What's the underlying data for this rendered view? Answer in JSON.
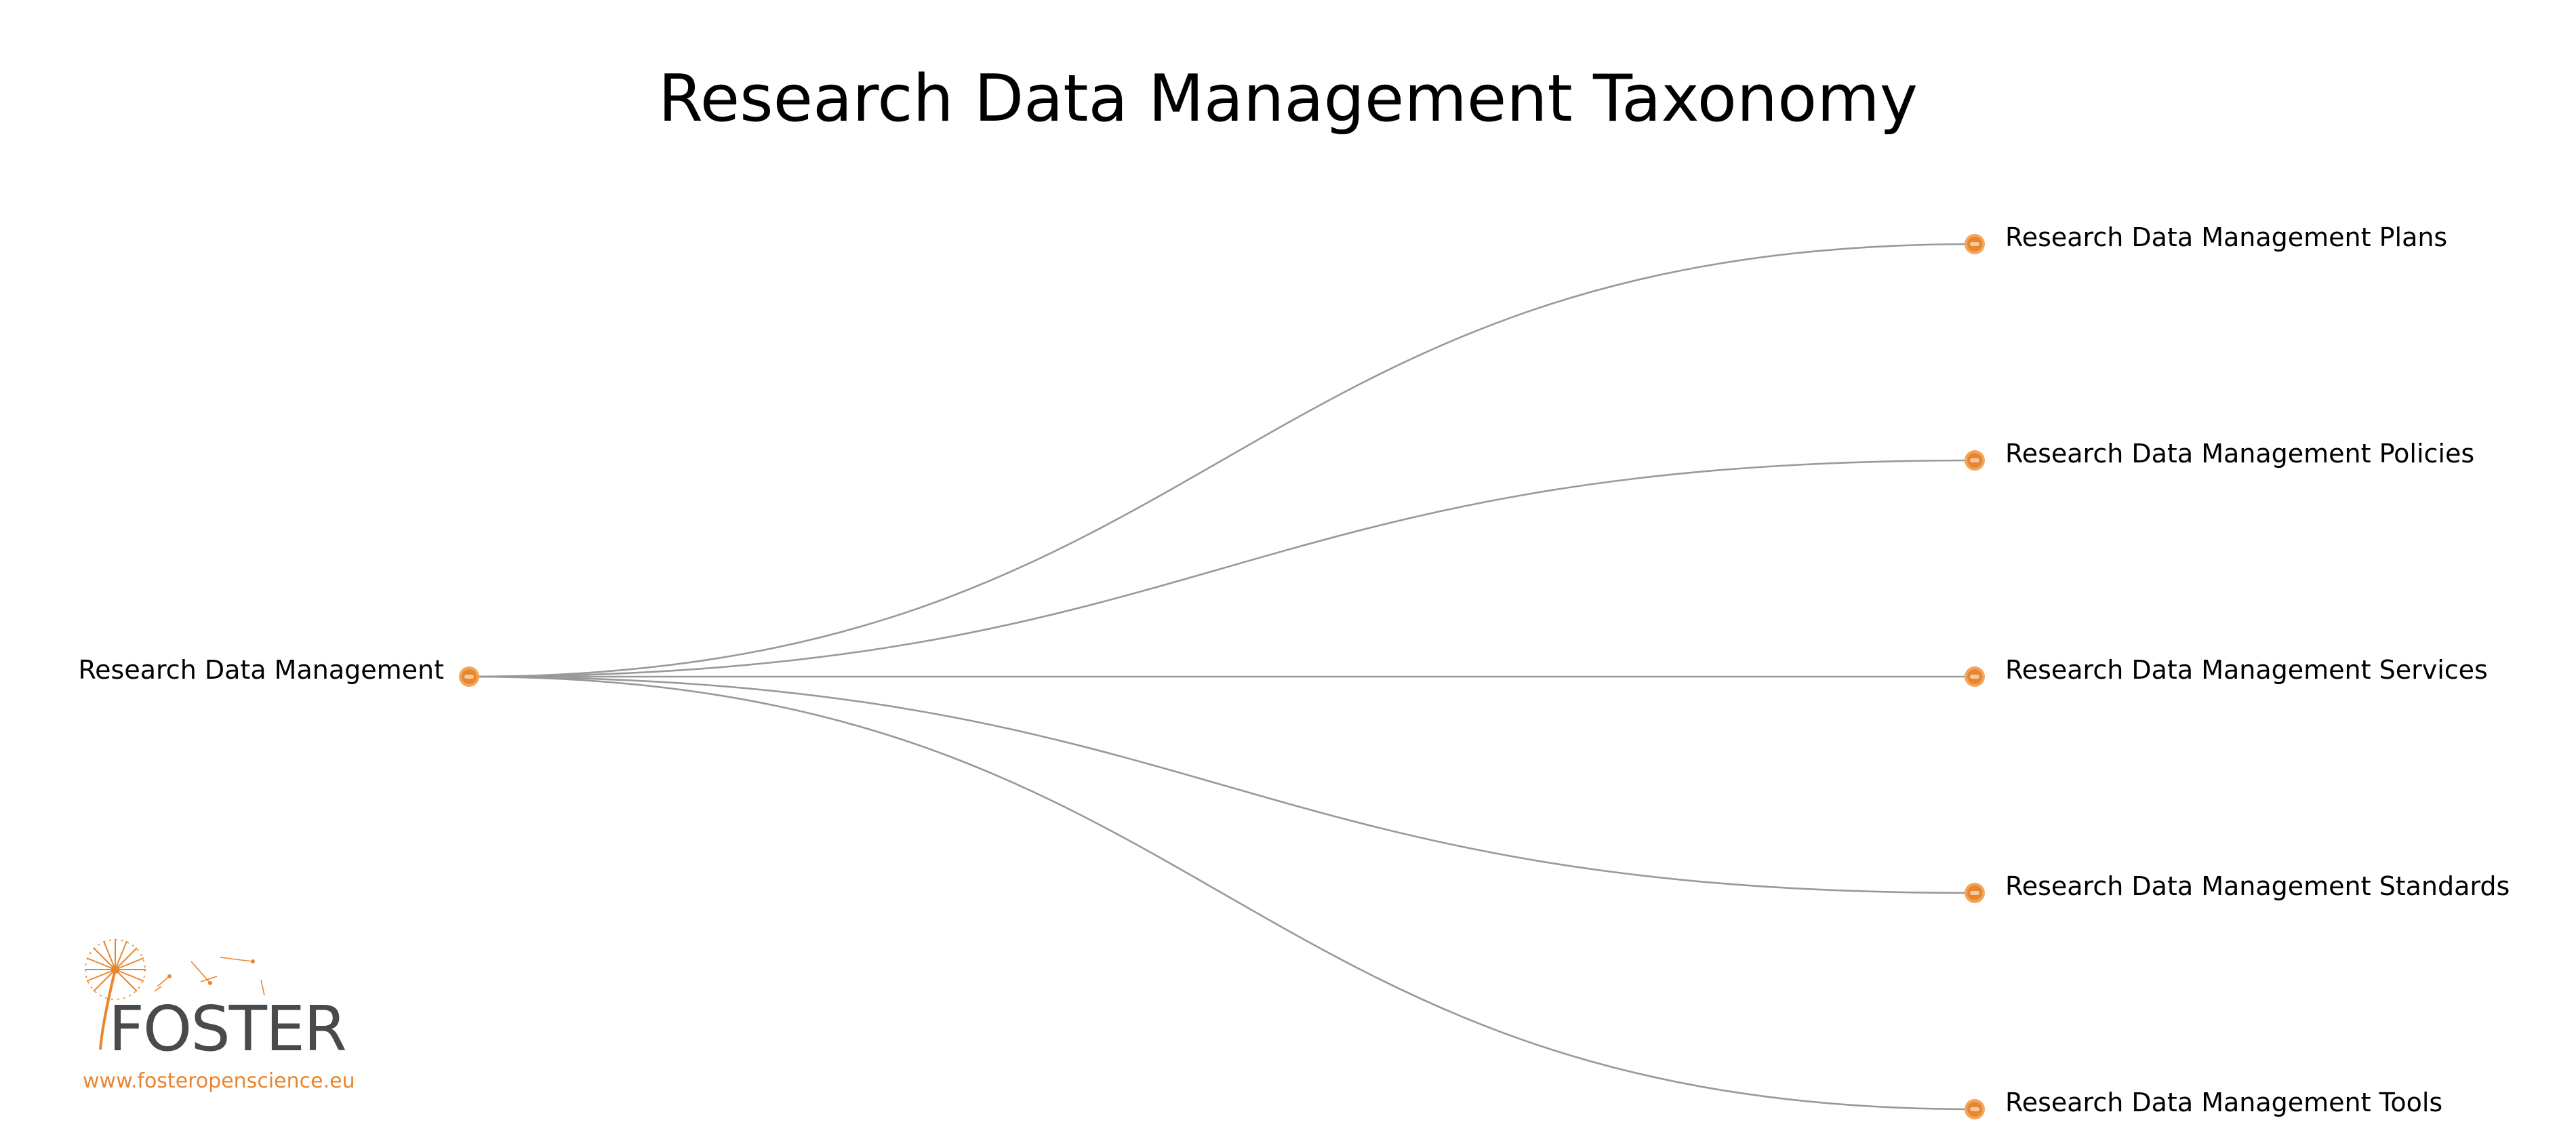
{
  "title": "Research Data Management Taxonomy",
  "tree": {
    "root": {
      "label": "Research Data Management"
    },
    "children": [
      {
        "label": "Research Data Management Plans"
      },
      {
        "label": "Research Data Management Policies"
      },
      {
        "label": "Research Data Management Services"
      },
      {
        "label": "Research Data Management Standards"
      },
      {
        "label": "Research Data Management Tools"
      }
    ]
  },
  "logo": {
    "wordmark": "FOSTER",
    "url": "www.fosteropenscience.eu",
    "icon": "dandelion-icon"
  },
  "colors": {
    "node_fill": "#e8862f",
    "node_ring": "#f2a65a",
    "link": "#999999",
    "logo_orange": "#e8862f",
    "logo_text": "#4a4a4a"
  }
}
